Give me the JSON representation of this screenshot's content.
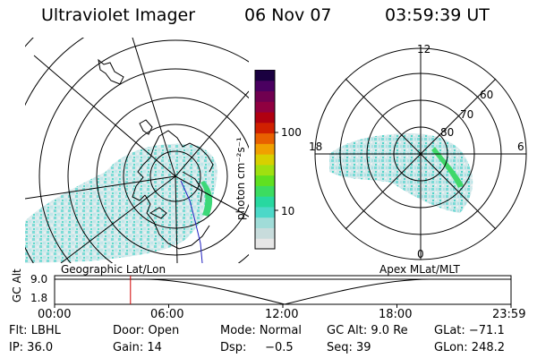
{
  "header": {
    "instrument": "Ultraviolet Imager",
    "date": "06 Nov 07",
    "time": "03:59:39 UT"
  },
  "colorbar": {
    "label": "photon cm⁻²s⁻¹",
    "ticks": [
      "100",
      "10"
    ],
    "scale": "log",
    "colors": [
      "#e6e6e6",
      "#c8dcdc",
      "#a0dcd8",
      "#4cd8c8",
      "#28d8a0",
      "#3cdc60",
      "#60e020",
      "#a0e010",
      "#d8d000",
      "#f0a000",
      "#e86000",
      "#d02000",
      "#b00010",
      "#900040",
      "#700050",
      "#4a0060",
      "#1a0040"
    ]
  },
  "left_panel": {
    "label": "Geographic Lat/Lon"
  },
  "right_panel": {
    "label": "Apex MLat/MLT",
    "lat_labels": [
      "60",
      "70",
      "80"
    ],
    "mlt_labels": [
      "12",
      "18",
      "6",
      "0"
    ]
  },
  "orbit": {
    "ylabel": "GC Alt",
    "ylabels": [
      "9.0",
      "1.8"
    ],
    "x_ticks": [
      "00:00",
      "06:00",
      "12:00",
      "18:00",
      "23:59"
    ],
    "marker_hours": 3.99
  },
  "footer": {
    "row1": [
      {
        "label": "Flt: LBHL"
      },
      {
        "label": "Door: Open"
      },
      {
        "label": "Mode: Normal"
      },
      {
        "label": "GC Alt: 9.0 Re"
      },
      {
        "label": "GLat: −71.1"
      }
    ],
    "row2": [
      {
        "label": "IP: 36.0"
      },
      {
        "label": "Gain: 14"
      },
      {
        "label": "Dsp:     −0.5"
      },
      {
        "label": "Seq: 39"
      },
      {
        "label": "GLon: 248.2"
      }
    ]
  }
}
